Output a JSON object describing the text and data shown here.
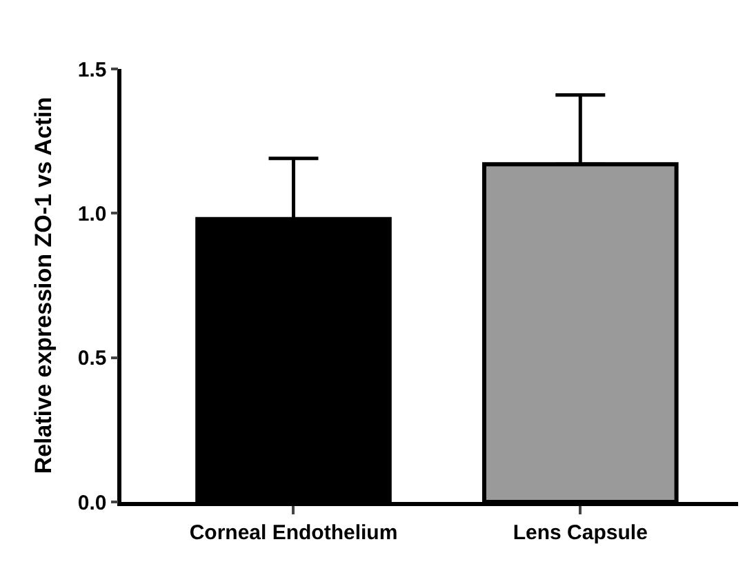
{
  "chart_data": {
    "type": "bar",
    "ylabel": "Relative expression ZO-1 vs Actin",
    "categories": [
      "Corneal Endothelium",
      "Lens Capsule"
    ],
    "values": [
      0.98,
      1.17
    ],
    "colors": [
      "#000000",
      "#9a9a9a"
    ],
    "errors": [
      [
        0.98,
        1.19
      ],
      [
        1.17,
        1.41
      ]
    ],
    "ylim": [
      0,
      1.5
    ],
    "yticks": [
      {
        "value": 0,
        "label": "0.0"
      },
      {
        "value": 0.5,
        "label": "0.5"
      },
      {
        "value": 1,
        "label": "1.0"
      },
      {
        "value": 1.5,
        "label": "1.5"
      }
    ]
  }
}
